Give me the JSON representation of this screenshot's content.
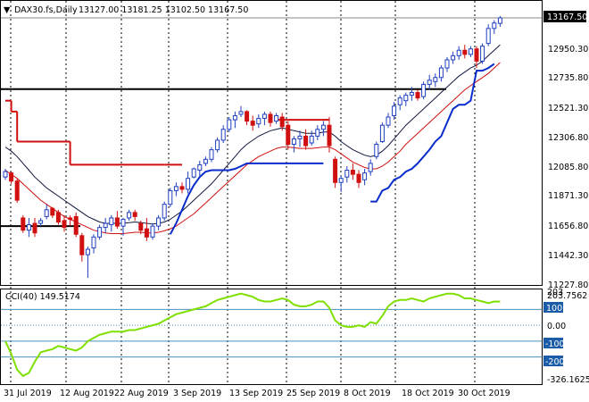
{
  "header": {
    "symbol": "DAX30.fs,Daily",
    "ohlc": "13127.00 13181.25 13102.50 13167.50"
  },
  "indicator": {
    "label": "CCI(40) 149.5174"
  },
  "price_axis": {
    "ticks": [
      "12950.30",
      "12735.80",
      "12521.30",
      "12306.80",
      "12085.80",
      "11871.30",
      "11656.80",
      "11442.30",
      "11227.80"
    ],
    "current_label": "13167.50"
  },
  "cci_axis": {
    "ticks": [
      "203.7562",
      "100",
      "0.00",
      "-100",
      "-200",
      "-326.1625"
    ],
    "top_small": "203"
  },
  "time_axis": {
    "labels": [
      "31 Jul 2019",
      "12 Aug 2019",
      "22 Aug 2019",
      "3 Sep 2019",
      "13 Sep 2019",
      "25 Sep 2019",
      "8 Oct 2019",
      "18 Oct 2019",
      "30 Oct 2019"
    ]
  },
  "colors": {
    "bull": "#1f3fbf",
    "bear": "#d01010",
    "blue_line": "#0a2ccc",
    "red_line": "#d01010",
    "mid_line": "#101840",
    "level": "#000000",
    "cci": "#7fe000",
    "cci_levels": "#4a90c2",
    "badge": "#1a5ca8"
  },
  "chart_data": {
    "type": "candlestick",
    "symbol": "DAX30.fs",
    "timeframe": "Daily",
    "last": {
      "open": 13127.0,
      "high": 13181.25,
      "low": 13102.5,
      "close": 13167.5
    },
    "y_range": [
      11227.8,
      13167.5
    ],
    "horizontal_levels": [
      12645,
      11640
    ],
    "candles": [
      [
        12000,
        12060,
        11980,
        12040
      ],
      [
        12030,
        12040,
        11950,
        11970
      ],
      [
        11970,
        11985,
        11810,
        11830
      ],
      [
        11700,
        11720,
        11590,
        11610
      ],
      [
        11610,
        11700,
        11560,
        11650
      ],
      [
        11660,
        11700,
        11560,
        11590
      ],
      [
        11660,
        11700,
        11640,
        11680
      ],
      [
        11710,
        11800,
        11690,
        11760
      ],
      [
        11770,
        11780,
        11700,
        11720
      ],
      [
        11740,
        11760,
        11650,
        11670
      ],
      [
        11680,
        11720,
        11600,
        11630
      ],
      [
        11700,
        11720,
        11640,
        11690
      ],
      [
        11710,
        11740,
        11560,
        11580
      ],
      [
        11570,
        11590,
        11380,
        11430
      ],
      [
        11430,
        11490,
        11260,
        11470
      ],
      [
        11480,
        11580,
        11440,
        11560
      ],
      [
        11560,
        11650,
        11540,
        11630
      ],
      [
        11630,
        11700,
        11590,
        11660
      ],
      [
        11650,
        11720,
        11600,
        11700
      ],
      [
        11700,
        11750,
        11620,
        11640
      ],
      [
        11640,
        11700,
        11570,
        11690
      ],
      [
        11700,
        11760,
        11680,
        11740
      ],
      [
        11740,
        11760,
        11680,
        11710
      ],
      [
        11660,
        11680,
        11580,
        11610
      ],
      [
        11620,
        11700,
        11530,
        11560
      ],
      [
        11560,
        11660,
        11540,
        11640
      ],
      [
        11640,
        11720,
        11610,
        11700
      ],
      [
        11700,
        11820,
        11680,
        11800
      ],
      [
        11800,
        11920,
        11780,
        11900
      ],
      [
        11900,
        11960,
        11860,
        11930
      ],
      [
        11930,
        11960,
        11880,
        11910
      ],
      [
        11910,
        12040,
        11880,
        11990
      ],
      [
        12000,
        12070,
        11990,
        12060
      ],
      [
        12050,
        12120,
        12000,
        12090
      ],
      [
        12100,
        12150,
        12080,
        12130
      ],
      [
        12130,
        12220,
        12110,
        12200
      ],
      [
        12200,
        12290,
        12180,
        12270
      ],
      [
        12270,
        12380,
        12250,
        12350
      ],
      [
        12350,
        12440,
        12330,
        12420
      ],
      [
        12420,
        12480,
        12360,
        12450
      ],
      [
        12460,
        12520,
        12440,
        12480
      ],
      [
        12480,
        12490,
        12380,
        12410
      ],
      [
        12410,
        12450,
        12340,
        12380
      ],
      [
        12390,
        12460,
        12360,
        12430
      ],
      [
        12430,
        12480,
        12380,
        12460
      ],
      [
        12460,
        12480,
        12370,
        12400
      ],
      [
        12410,
        12470,
        12390,
        12450
      ],
      [
        12440,
        12470,
        12340,
        12370
      ],
      [
        12380,
        12410,
        12200,
        12240
      ],
      [
        12240,
        12300,
        12180,
        12280
      ],
      [
        12280,
        12340,
        12220,
        12300
      ],
      [
        12300,
        12350,
        12200,
        12230
      ],
      [
        12250,
        12340,
        12230,
        12300
      ],
      [
        12300,
        12380,
        12270,
        12350
      ],
      [
        12350,
        12410,
        12300,
        12380
      ],
      [
        12380,
        12440,
        12180,
        12230
      ],
      [
        12130,
        12150,
        11920,
        11960
      ],
      [
        11960,
        12010,
        11890,
        11990
      ],
      [
        12000,
        12080,
        11960,
        12050
      ],
      [
        12050,
        12100,
        11980,
        12020
      ],
      [
        12020,
        12050,
        11920,
        11960
      ],
      [
        11980,
        12060,
        11940,
        12030
      ],
      [
        12040,
        12130,
        12010,
        12100
      ],
      [
        12150,
        12260,
        12130,
        12240
      ],
      [
        12260,
        12400,
        12250,
        12380
      ],
      [
        12380,
        12470,
        12360,
        12440
      ],
      [
        12450,
        12550,
        12420,
        12520
      ],
      [
        12530,
        12600,
        12490,
        12580
      ],
      [
        12560,
        12620,
        12520,
        12600
      ],
      [
        12600,
        12660,
        12560,
        12620
      ],
      [
        12620,
        12640,
        12560,
        12580
      ],
      [
        12590,
        12700,
        12570,
        12680
      ],
      [
        12680,
        12750,
        12640,
        12710
      ],
      [
        12700,
        12760,
        12660,
        12730
      ],
      [
        12730,
        12820,
        12700,
        12800
      ],
      [
        12800,
        12880,
        12770,
        12860
      ],
      [
        12860,
        12920,
        12830,
        12890
      ],
      [
        12890,
        12960,
        12860,
        12930
      ],
      [
        12930,
        12970,
        12870,
        12900
      ],
      [
        12900,
        12960,
        12880,
        12940
      ],
      [
        12940,
        12960,
        12800,
        12850
      ],
      [
        12850,
        12980,
        12830,
        12960
      ],
      [
        12980,
        13120,
        12960,
        13090
      ],
      [
        13090,
        13150,
        13050,
        13130
      ],
      [
        13127.0,
        13181.25,
        13102.5,
        13167.5
      ]
    ],
    "ma_fast": [
      12220,
      12190,
      12150,
      12100,
      12050,
      12000,
      11960,
      11920,
      11890,
      11860,
      11830,
      11800,
      11770,
      11740,
      11710,
      11690,
      11670,
      11660,
      11660,
      11660,
      11660,
      11665,
      11670,
      11665,
      11660,
      11655,
      11660,
      11670,
      11690,
      11720,
      11750,
      11790,
      11830,
      11870,
      11910,
      11950,
      12000,
      12050,
      12100,
      12150,
      12200,
      12240,
      12270,
      12300,
      12320,
      12340,
      12350,
      12360,
      12350,
      12340,
      12330,
      12320,
      12320,
      12320,
      12330,
      12330,
      12300,
      12260,
      12230,
      12200,
      12180,
      12160,
      12150,
      12160,
      12190,
      12230,
      12280,
      12330,
      12380,
      12420,
      12460,
      12500,
      12540,
      12580,
      12620,
      12660,
      12700,
      12740,
      12770,
      12800,
      12820,
      12850,
      12890,
      12930,
      12970
    ],
    "ma_slow": [
      12050,
      12020,
      11990,
      11950,
      11910,
      11870,
      11830,
      11800,
      11770,
      11740,
      11710,
      11690,
      11670,
      11650,
      11630,
      11610,
      11600,
      11590,
      11585,
      11585,
      11585,
      11590,
      11595,
      11595,
      11590,
      11590,
      11595,
      11605,
      11620,
      11640,
      11670,
      11700,
      11730,
      11770,
      11810,
      11850,
      11890,
      11930,
      11970,
      12010,
      12050,
      12090,
      12120,
      12150,
      12170,
      12190,
      12210,
      12220,
      12220,
      12215,
      12210,
      12210,
      12210,
      12215,
      12220,
      12220,
      12200,
      12170,
      12140,
      12110,
      12090,
      12070,
      12060,
      12060,
      12080,
      12110,
      12150,
      12190,
      12240,
      12280,
      12320,
      12360,
      12400,
      12440,
      12480,
      12520,
      12560,
      12600,
      12640,
      12670,
      12700,
      12730,
      12760,
      12800,
      12840
    ],
    "upper_step": [
      {
        "from": 0,
        "to": 1,
        "value": 12560
      },
      {
        "from": 1,
        "to": 2,
        "value": 12480
      },
      {
        "from": 2,
        "to": 11,
        "value": 12260
      },
      {
        "from": 11,
        "to": 27,
        "value": 12090
      },
      {
        "from": 27,
        "to": 30,
        "value": 12090
      },
      {
        "from": 46,
        "to": 55,
        "value": 12420
      }
    ],
    "lower_trail": [
      [
        28,
        11580
      ],
      [
        29,
        11660
      ],
      [
        30,
        11760
      ],
      [
        31,
        11860
      ],
      [
        32,
        11940
      ],
      [
        33,
        12000
      ],
      [
        34,
        12040
      ],
      [
        35,
        12050
      ],
      [
        36,
        12050
      ],
      [
        37,
        12050
      ],
      [
        38,
        12050
      ],
      [
        39,
        12060
      ],
      [
        40,
        12080
      ],
      [
        41,
        12100
      ],
      [
        42,
        12100
      ],
      [
        43,
        12100
      ],
      [
        44,
        12100
      ],
      [
        45,
        12100
      ],
      [
        46,
        12100
      ],
      [
        47,
        12100
      ],
      [
        48,
        12100
      ],
      [
        49,
        12100
      ],
      [
        50,
        12100
      ],
      [
        51,
        12100
      ],
      [
        52,
        12100
      ],
      [
        53,
        12100
      ],
      [
        54,
        12100
      ],
      [
        62,
        11820
      ],
      [
        63,
        11820
      ],
      [
        64,
        11900
      ],
      [
        65,
        11920
      ],
      [
        66,
        11980
      ],
      [
        67,
        12000
      ],
      [
        68,
        12040
      ],
      [
        69,
        12060
      ],
      [
        70,
        12100
      ],
      [
        71,
        12150
      ],
      [
        72,
        12200
      ],
      [
        73,
        12260
      ],
      [
        74,
        12300
      ],
      [
        75,
        12400
      ],
      [
        76,
        12500
      ],
      [
        77,
        12530
      ],
      [
        78,
        12530
      ],
      [
        79,
        12560
      ],
      [
        80,
        12780
      ],
      [
        81,
        12780
      ],
      [
        82,
        12800
      ],
      [
        83,
        12830
      ]
    ],
    "cci": {
      "name": "CCI(40)",
      "last": 149.5174,
      "range": [
        -326.1625,
        203.7562
      ],
      "levels": [
        100,
        -100,
        -200
      ],
      "values": [
        -100,
        -180,
        -280,
        -320,
        -300,
        -230,
        -170,
        -160,
        -150,
        -130,
        -140,
        -150,
        -160,
        -140,
        -100,
        -80,
        -60,
        -50,
        -40,
        -40,
        -40,
        -30,
        -30,
        -20,
        -10,
        0,
        10,
        30,
        50,
        70,
        80,
        90,
        100,
        110,
        120,
        140,
        160,
        170,
        180,
        190,
        200,
        190,
        180,
        160,
        150,
        150,
        160,
        170,
        160,
        130,
        120,
        120,
        130,
        150,
        150,
        110,
        30,
        0,
        -10,
        -10,
        0,
        -10,
        20,
        10,
        60,
        120,
        150,
        160,
        160,
        170,
        160,
        150,
        170,
        180,
        190,
        200,
        200,
        190,
        170,
        170,
        160,
        150,
        140,
        150,
        149.5
      ]
    },
    "x_labels": [
      "31 Jul 2019",
      "12 Aug 2019",
      "22 Aug 2019",
      "3 Sep 2019",
      "13 Sep 2019",
      "25 Sep 2019",
      "8 Oct 2019",
      "18 Oct 2019",
      "30 Oct 2019"
    ]
  }
}
